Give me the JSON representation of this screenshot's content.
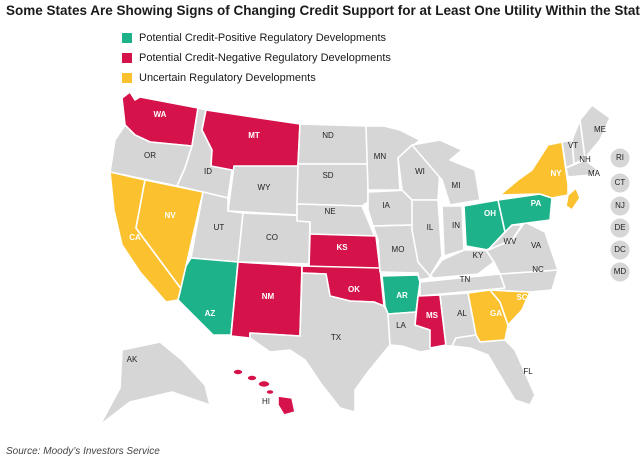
{
  "title": "Some States Are Showing Signs of Changing Credit Support for at Least One Utility Within the State",
  "legend": {
    "positive": "Potential Credit-Positive Regulatory Developments",
    "negative": "Potential Credit-Negative Regulatory Developments",
    "uncertain": "Uncertain Regulatory Developments"
  },
  "colors": {
    "positive": "#1db28a",
    "negative": "#d6124a",
    "uncertain": "#fcc12e",
    "neutral": "#d6d6d6"
  },
  "map": {
    "states": {
      "WA": "negative",
      "OR": "neutral",
      "CA": "uncertain",
      "NV": "uncertain",
      "ID": "neutral",
      "MT": "negative",
      "WY": "neutral",
      "UT": "neutral",
      "AZ": "positive",
      "CO": "neutral",
      "NM": "negative",
      "ND": "neutral",
      "SD": "neutral",
      "NE": "neutral",
      "KS": "negative",
      "OK": "negative",
      "TX": "neutral",
      "MN": "neutral",
      "IA": "neutral",
      "MO": "neutral",
      "AR": "positive",
      "LA": "neutral",
      "WI": "neutral",
      "IL": "neutral",
      "MS": "negative",
      "MI": "neutral",
      "IN": "neutral",
      "KY": "neutral",
      "TN": "neutral",
      "AL": "neutral",
      "GA": "uncertain",
      "FL": "neutral",
      "SC": "uncertain",
      "NC": "neutral",
      "OH": "positive",
      "WV": "neutral",
      "VA": "neutral",
      "PA": "positive",
      "NY": "uncertain",
      "VT": "neutral",
      "NH": "neutral",
      "ME": "neutral",
      "MA": "neutral",
      "AK": "neutral",
      "HI": "negative",
      "NJ": "uncertain"
    },
    "small_states": [
      "RI",
      "CT",
      "NJ",
      "DE",
      "DC",
      "MD"
    ]
  },
  "source": "Source: Moody’s Investors Service"
}
